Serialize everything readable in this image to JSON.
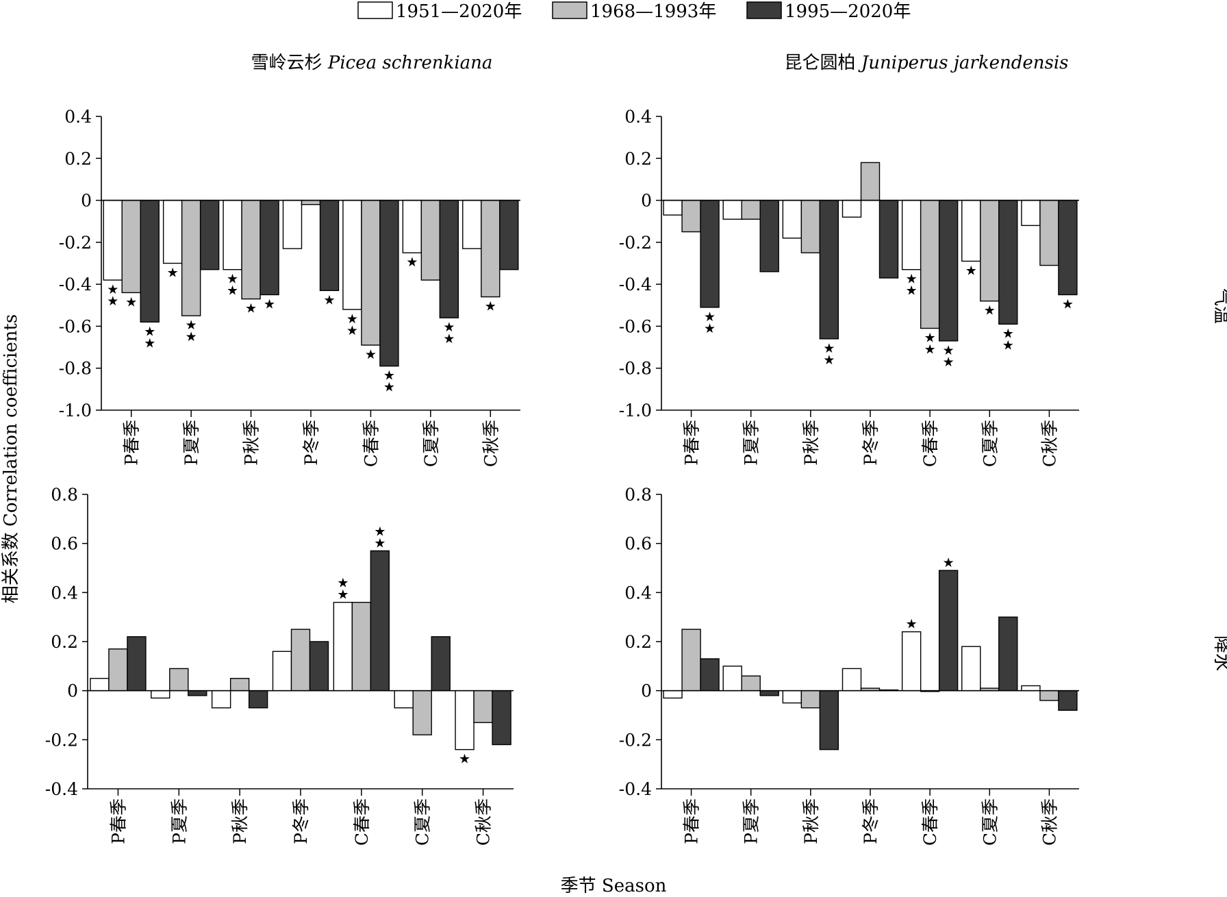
{
  "legend": [
    {
      "label": "1951—2020年",
      "color": "#ffffff"
    },
    {
      "label": "1968—1993年",
      "color": "#bebebe"
    },
    {
      "label": "1995—2020年",
      "color": "#3b3b3b"
    }
  ],
  "columns": [
    {
      "title": "雪岭云杉 ",
      "title_italic": "Picea schrenkiana"
    },
    {
      "title": "昆仑圆柏 ",
      "title_italic": "Juniperus jarkendensis"
    }
  ],
  "rows": [
    {
      "label": "气温"
    },
    {
      "label": "降水"
    }
  ],
  "ylabel": "相关系数 Correlation coefficients",
  "xlabel": "季节 Season",
  "categories": [
    "P春季",
    "P夏季",
    "P秋季",
    "P冬季",
    "C春季",
    "C夏季",
    "C秋季"
  ],
  "chart_data": [
    {
      "type": "bar",
      "panel": "雪岭云杉-气温",
      "ylim": [
        -1.0,
        0.4
      ],
      "yticks": [
        "0.4",
        "0.2",
        "0",
        "-0.2",
        "-0.4",
        "-0.6",
        "-0.8",
        "-1.0"
      ],
      "series": [
        {
          "values": [
            -0.38,
            -0.3,
            -0.33,
            -0.23,
            -0.52,
            -0.25,
            -0.23
          ],
          "stars": [
            2,
            1,
            2,
            0,
            2,
            1,
            0
          ]
        },
        {
          "values": [
            -0.44,
            -0.55,
            -0.47,
            -0.02,
            -0.69,
            -0.38,
            -0.46
          ],
          "stars": [
            1,
            2,
            1,
            0,
            1,
            0,
            1
          ]
        },
        {
          "values": [
            -0.58,
            -0.33,
            -0.45,
            -0.43,
            -0.79,
            -0.56,
            -0.33
          ],
          "stars": [
            2,
            0,
            1,
            1,
            2,
            2,
            0
          ]
        }
      ]
    },
    {
      "type": "bar",
      "panel": "昆仑圆柏-气温",
      "ylim": [
        -1.0,
        0.4
      ],
      "yticks": [
        "0.4",
        "0.2",
        "0",
        "-0.2",
        "-0.4",
        "-0.6",
        "-0.8",
        "-1.0"
      ],
      "series": [
        {
          "values": [
            -0.07,
            -0.09,
            -0.18,
            -0.08,
            -0.33,
            -0.29,
            -0.12
          ],
          "stars": [
            0,
            0,
            0,
            0,
            2,
            1,
            0
          ]
        },
        {
          "values": [
            -0.15,
            -0.09,
            -0.25,
            0.18,
            -0.61,
            -0.48,
            -0.31
          ],
          "stars": [
            0,
            0,
            0,
            0,
            2,
            1,
            0
          ]
        },
        {
          "values": [
            -0.51,
            -0.34,
            -0.66,
            -0.37,
            -0.67,
            -0.59,
            -0.45
          ],
          "stars": [
            2,
            0,
            2,
            0,
            2,
            2,
            1
          ]
        }
      ]
    },
    {
      "type": "bar",
      "panel": "雪岭云杉-降水",
      "ylim": [
        -0.4,
        0.8
      ],
      "yticks": [
        "0.8",
        "0.6",
        "0.4",
        "0.2",
        "0",
        "-0.2",
        "-0.4"
      ],
      "series": [
        {
          "values": [
            0.05,
            -0.03,
            -0.07,
            0.16,
            0.36,
            -0.07,
            -0.24
          ],
          "stars": [
            0,
            0,
            0,
            0,
            2,
            0,
            1
          ]
        },
        {
          "values": [
            0.17,
            0.09,
            0.05,
            0.25,
            0.36,
            -0.18,
            -0.13
          ],
          "stars": [
            0,
            0,
            0,
            0,
            0,
            0,
            0
          ]
        },
        {
          "values": [
            0.22,
            -0.02,
            -0.07,
            0.2,
            0.57,
            0.22,
            -0.22
          ],
          "stars": [
            0,
            0,
            0,
            0,
            2,
            0,
            0
          ]
        }
      ]
    },
    {
      "type": "bar",
      "panel": "昆仑圆柏-降水",
      "ylim": [
        -0.4,
        0.8
      ],
      "yticks": [
        "0.8",
        "0.6",
        "0.4",
        "0.2",
        "0",
        "-0.2",
        "-0.4"
      ],
      "series": [
        {
          "values": [
            -0.03,
            0.1,
            -0.05,
            0.09,
            0.24,
            0.18,
            0.02
          ],
          "stars": [
            0,
            0,
            0,
            0,
            1,
            0,
            0
          ]
        },
        {
          "values": [
            0.25,
            0.06,
            -0.07,
            0.01,
            0.0,
            0.01,
            -0.04
          ],
          "stars": [
            0,
            0,
            0,
            0,
            0,
            0,
            0
          ]
        },
        {
          "values": [
            0.13,
            -0.02,
            -0.24,
            0.003,
            0.49,
            0.3,
            -0.08
          ],
          "stars": [
            0,
            0,
            0,
            0,
            1,
            0,
            0
          ]
        }
      ]
    }
  ]
}
